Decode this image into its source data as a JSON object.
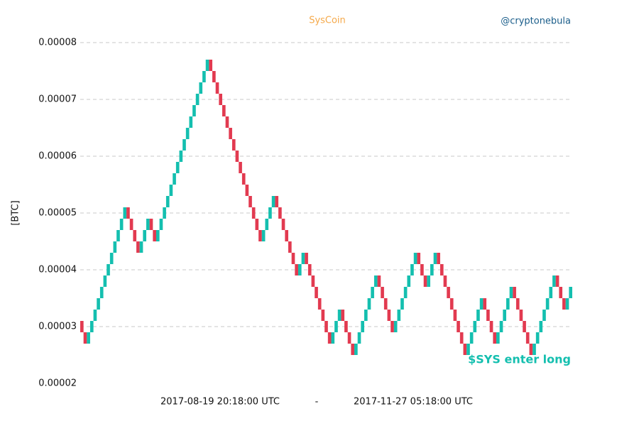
{
  "chart_data": {
    "type": "renko",
    "title": "SysCoin",
    "credit": "@cryptonebula",
    "y_label": "[BTC]",
    "x_start_label": "2017-08-19 20:18:00 UTC",
    "x_separator": "-",
    "x_end_label": "2017-11-27 05:18:00 UTC",
    "annotation": "$SYS enter long",
    "up_color": "#14bfaf",
    "down_color": "#e23a50",
    "title_color": "#f5a94a",
    "credit_color": "#1a5d8a",
    "ylim": [
      2e-05,
      8e-05
    ],
    "yticks": [
      {
        "value": 2e-05,
        "label": "0.00002"
      },
      {
        "value": 3e-05,
        "label": "0.00003"
      },
      {
        "value": 4e-05,
        "label": "0.00004"
      },
      {
        "value": 5e-05,
        "label": "0.00005"
      },
      {
        "value": 6e-05,
        "label": "0.00006"
      },
      {
        "value": 7e-05,
        "label": "0.00007"
      },
      {
        "value": 8e-05,
        "label": "0.00008"
      }
    ],
    "grid": true,
    "open": 3.1e-05,
    "closes": [
      2.9e-05,
      2.7e-05,
      2.9e-05,
      3.1e-05,
      3.3e-05,
      3.5e-05,
      3.7e-05,
      3.9e-05,
      4.1e-05,
      4.3e-05,
      4.5e-05,
      4.7e-05,
      4.9e-05,
      5.1e-05,
      4.9e-05,
      4.7e-05,
      4.5e-05,
      4.3e-05,
      4.5e-05,
      4.7e-05,
      4.9e-05,
      4.7e-05,
      4.5e-05,
      4.7e-05,
      4.9e-05,
      5.1e-05,
      5.3e-05,
      5.5e-05,
      5.7e-05,
      5.9e-05,
      6.1e-05,
      6.3e-05,
      6.5e-05,
      6.7e-05,
      6.9e-05,
      7.1e-05,
      7.3e-05,
      7.5e-05,
      7.7e-05,
      7.5e-05,
      7.3e-05,
      7.1e-05,
      6.9e-05,
      6.7e-05,
      6.5e-05,
      6.3e-05,
      6.1e-05,
      5.9e-05,
      5.7e-05,
      5.5e-05,
      5.3e-05,
      5.1e-05,
      4.9e-05,
      4.7e-05,
      4.5e-05,
      4.7e-05,
      4.9e-05,
      5.1e-05,
      5.3e-05,
      5.1e-05,
      4.9e-05,
      4.7e-05,
      4.5e-05,
      4.3e-05,
      4.1e-05,
      3.9e-05,
      4.1e-05,
      4.3e-05,
      4.1e-05,
      3.9e-05,
      3.7e-05,
      3.5e-05,
      3.3e-05,
      3.1e-05,
      2.9e-05,
      2.7e-05,
      2.9e-05,
      3.1e-05,
      3.3e-05,
      3.1e-05,
      2.9e-05,
      2.7e-05,
      2.5e-05,
      2.7e-05,
      2.9e-05,
      3.1e-05,
      3.3e-05,
      3.5e-05,
      3.7e-05,
      3.9e-05,
      3.7e-05,
      3.5e-05,
      3.3e-05,
      3.1e-05,
      2.9e-05,
      3.1e-05,
      3.3e-05,
      3.5e-05,
      3.7e-05,
      3.9e-05,
      4.1e-05,
      4.3e-05,
      4.1e-05,
      3.9e-05,
      3.7e-05,
      3.9e-05,
      4.1e-05,
      4.3e-05,
      4.1e-05,
      3.9e-05,
      3.7e-05,
      3.5e-05,
      3.3e-05,
      3.1e-05,
      2.9e-05,
      2.7e-05,
      2.5e-05,
      2.7e-05,
      2.9e-05,
      3.1e-05,
      3.3e-05,
      3.5e-05,
      3.3e-05,
      3.1e-05,
      2.9e-05,
      2.7e-05,
      2.9e-05,
      3.1e-05,
      3.3e-05,
      3.5e-05,
      3.7e-05,
      3.5e-05,
      3.3e-05,
      3.1e-05,
      2.9e-05,
      2.7e-05,
      2.5e-05,
      2.7e-05,
      2.9e-05,
      3.1e-05,
      3.3e-05,
      3.5e-05,
      3.7e-05,
      3.9e-05,
      3.7e-05,
      3.5e-05,
      3.3e-05,
      3.5e-05,
      3.7e-05
    ]
  }
}
